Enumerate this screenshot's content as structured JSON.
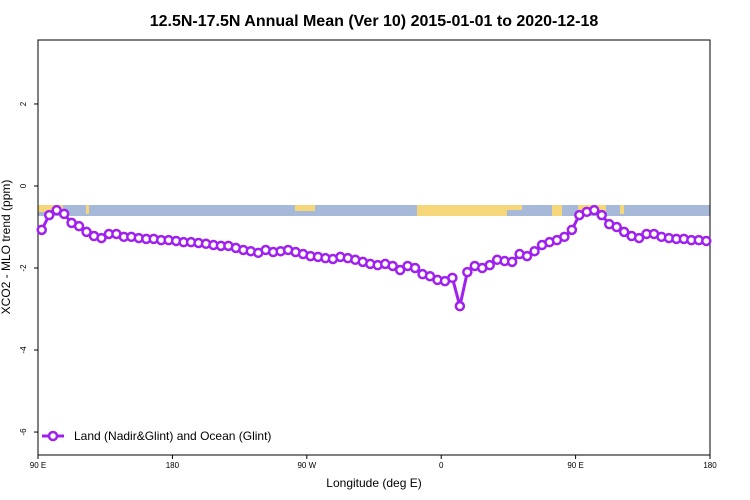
{
  "chart_data": {
    "type": "line",
    "title": "12.5N-17.5N Annual Mean (Ver 10)   2015-01-01 to 2020-12-18",
    "x_label": "Longitude (deg E)",
    "y_label": "XCO2 - MLO trend (ppm)",
    "xlim": [
      90,
      540
    ],
    "ylim": [
      -6.56,
      3.56
    ],
    "xticks": [
      {
        "value": 90,
        "label": "90 E"
      },
      180,
      {
        "value": 270,
        "label": "90 W"
      },
      {
        "value": 360,
        "label": "0"
      },
      {
        "value": 450,
        "label": "90 E"
      },
      {
        "value": 540,
        "label": "180"
      }
    ],
    "yticks": [
      -6,
      -4,
      -2,
      0,
      2
    ],
    "legend_position": "bottom-left",
    "x": [
      92.5,
      97.5,
      102.5,
      107.5,
      112.5,
      117.5,
      122.5,
      127.5,
      132.5,
      137.5,
      142.5,
      147.5,
      152.5,
      157.5,
      162.5,
      167.5,
      172.5,
      177.5,
      182.5,
      187.5,
      192.5,
      197.5,
      202.5,
      207.5,
      212.5,
      217.5,
      222.5,
      227.5,
      232.5,
      237.5,
      242.5,
      247.5,
      252.5,
      257.5,
      262.5,
      267.5,
      272.5,
      277.5,
      282.5,
      287.5,
      292.5,
      297.5,
      302.5,
      307.5,
      312.5,
      317.5,
      322.5,
      327.5,
      332.5,
      337.5,
      342.5,
      347.5,
      352.5,
      357.5,
      362.5,
      367.5,
      372.5,
      377.5,
      382.5,
      387.5,
      392.5,
      397.5,
      402.5,
      407.5,
      412.5,
      417.5,
      422.5,
      427.5,
      432.5,
      437.5,
      442.5,
      447.5,
      452.5,
      457.5,
      462.5,
      467.5,
      472.5,
      477.5,
      482.5,
      487.5,
      492.5,
      497.5,
      502.5,
      507.5,
      512.5,
      517.5,
      522.5,
      527.5,
      532.5,
      537.5
    ],
    "series": [
      {
        "name": "Land (Nadir&Glint) and Ocean (Glint)",
        "color": "#a020f0",
        "values": [
          -1.07,
          -0.71,
          -0.59,
          -0.68,
          -0.9,
          -0.98,
          -1.12,
          -1.22,
          -1.27,
          -1.17,
          -1.17,
          -1.24,
          -1.24,
          -1.27,
          -1.29,
          -1.29,
          -1.32,
          -1.32,
          -1.34,
          -1.37,
          -1.37,
          -1.39,
          -1.41,
          -1.44,
          -1.46,
          -1.46,
          -1.51,
          -1.56,
          -1.59,
          -1.63,
          -1.56,
          -1.61,
          -1.59,
          -1.56,
          -1.61,
          -1.66,
          -1.71,
          -1.73,
          -1.76,
          -1.78,
          -1.73,
          -1.76,
          -1.8,
          -1.85,
          -1.9,
          -1.93,
          -1.9,
          -1.95,
          -2.05,
          -1.95,
          -2.0,
          -2.15,
          -2.2,
          -2.29,
          -2.32,
          -2.24,
          -2.93,
          -2.1,
          -1.95,
          -2.0,
          -1.93,
          -1.8,
          -1.83,
          -1.85,
          -1.66,
          -1.71,
          -1.59,
          -1.44,
          -1.37,
          -1.32,
          -1.24,
          -1.07,
          -0.71,
          -0.63,
          -0.59,
          -0.71,
          -0.93,
          -1.0,
          -1.12,
          -1.22,
          -1.27,
          -1.17,
          -1.17,
          -1.24,
          -1.27,
          -1.29,
          -1.29,
          -1.32,
          -1.32,
          -1.34
        ]
      }
    ]
  }
}
